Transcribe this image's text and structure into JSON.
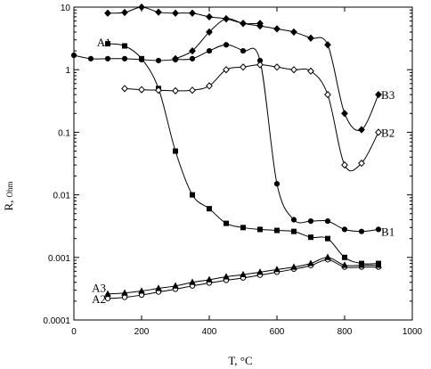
{
  "chart_data": {
    "type": "line",
    "xlabel": "T, °C",
    "ylabel_main": "R,",
    "ylabel_sub": "Ohm",
    "x_ticks": [
      0,
      200,
      400,
      600,
      800,
      1000
    ],
    "y_ticks": [
      {
        "value": 10,
        "label": "10"
      },
      {
        "value": 1,
        "label": "1"
      },
      {
        "value": 0.1,
        "label": "0.1"
      },
      {
        "value": 0.01,
        "label": "0.01"
      },
      {
        "value": 0.001,
        "label": "0.001"
      },
      {
        "value": 0.0001,
        "label": "0.0001"
      }
    ],
    "xlim": [
      0,
      1000
    ],
    "ylim": [
      0.0001,
      10
    ],
    "yscale": "log",
    "grid": false,
    "series": [
      {
        "name": "A1",
        "marker": "square",
        "fill": true,
        "label_pos": [
          115,
          2.8
        ],
        "label_anchor": "end",
        "points": [
          [
            100,
            2.6
          ],
          [
            150,
            2.4
          ],
          [
            200,
            1.5
          ],
          [
            250,
            0.5
          ],
          [
            300,
            0.05
          ],
          [
            350,
            0.01
          ],
          [
            400,
            0.006
          ],
          [
            450,
            0.0035
          ],
          [
            500,
            0.003
          ],
          [
            550,
            0.0028
          ],
          [
            600,
            0.0027
          ],
          [
            650,
            0.0026
          ],
          [
            700,
            0.0021
          ],
          [
            750,
            0.002
          ],
          [
            800,
            0.001
          ],
          [
            850,
            0.0008
          ],
          [
            900,
            0.0008
          ]
        ]
      },
      {
        "name": "A2",
        "marker": "circle",
        "fill": false,
        "label_pos": [
          100,
          0.00022
        ],
        "label_anchor": "end",
        "points": [
          [
            100,
            0.00022
          ],
          [
            150,
            0.00023
          ],
          [
            200,
            0.00025
          ],
          [
            250,
            0.00028
          ],
          [
            300,
            0.00031
          ],
          [
            350,
            0.00035
          ],
          [
            400,
            0.00039
          ],
          [
            450,
            0.00043
          ],
          [
            500,
            0.00047
          ],
          [
            550,
            0.00052
          ],
          [
            600,
            0.00058
          ],
          [
            650,
            0.00065
          ],
          [
            700,
            0.00074
          ],
          [
            750,
            0.00092
          ],
          [
            800,
            0.0007
          ],
          [
            850,
            0.0007
          ],
          [
            900,
            0.0007
          ]
        ]
      },
      {
        "name": "A3",
        "marker": "triangle",
        "fill": true,
        "label_pos": [
          100,
          0.00033
        ],
        "label_anchor": "end",
        "points": [
          [
            100,
            0.00026
          ],
          [
            150,
            0.00027
          ],
          [
            200,
            0.00029
          ],
          [
            250,
            0.00032
          ],
          [
            300,
            0.00035
          ],
          [
            350,
            0.0004
          ],
          [
            400,
            0.00044
          ],
          [
            450,
            0.00049
          ],
          [
            500,
            0.00053
          ],
          [
            550,
            0.00058
          ],
          [
            600,
            0.00064
          ],
          [
            650,
            0.0007
          ],
          [
            700,
            0.0008
          ],
          [
            750,
            0.001
          ],
          [
            800,
            0.00075
          ],
          [
            850,
            0.00075
          ],
          [
            900,
            0.00075
          ]
        ]
      },
      {
        "name": "B1",
        "marker": "circle",
        "fill": true,
        "label_pos": [
          908,
          0.0026
        ],
        "label_anchor": "start",
        "points": [
          [
            0,
            1.7
          ],
          [
            50,
            1.5
          ],
          [
            100,
            1.5
          ],
          [
            150,
            1.5
          ],
          [
            200,
            1.45
          ],
          [
            250,
            1.4
          ],
          [
            300,
            1.45
          ],
          [
            350,
            1.5
          ],
          [
            400,
            2.0
          ],
          [
            450,
            2.5
          ],
          [
            500,
            2.0
          ],
          [
            550,
            1.4
          ],
          [
            600,
            0.015
          ],
          [
            650,
            0.004
          ],
          [
            700,
            0.0038
          ],
          [
            750,
            0.0038
          ],
          [
            800,
            0.0028
          ],
          [
            850,
            0.0026
          ],
          [
            900,
            0.0028
          ]
        ]
      },
      {
        "name": "B2",
        "marker": "diamond",
        "fill": false,
        "label_pos": [
          908,
          0.1
        ],
        "label_anchor": "start",
        "points": [
          [
            150,
            0.5
          ],
          [
            200,
            0.48
          ],
          [
            250,
            0.47
          ],
          [
            300,
            0.46
          ],
          [
            350,
            0.47
          ],
          [
            400,
            0.55
          ],
          [
            450,
            1.0
          ],
          [
            500,
            1.1
          ],
          [
            550,
            1.2
          ],
          [
            600,
            1.1
          ],
          [
            650,
            1.0
          ],
          [
            700,
            0.95
          ],
          [
            750,
            0.4
          ],
          [
            800,
            0.03
          ],
          [
            850,
            0.032
          ],
          [
            900,
            0.1
          ]
        ]
      },
      {
        "name": "B3",
        "marker": "diamond",
        "fill": true,
        "label_pos": [
          908,
          0.4
        ],
        "label_anchor": "start",
        "points": [
          [
            100,
            8.0
          ],
          [
            150,
            8.2
          ],
          [
            200,
            10.0
          ],
          [
            250,
            8.3
          ],
          [
            300,
            8.0
          ],
          [
            350,
            8.0
          ],
          [
            400,
            7.0
          ],
          [
            450,
            6.5
          ],
          [
            500,
            5.5
          ],
          [
            550,
            5.0
          ],
          [
            600,
            4.5
          ],
          [
            650,
            4.0
          ],
          [
            700,
            3.2
          ],
          [
            750,
            2.5
          ],
          [
            800,
            0.2
          ],
          [
            850,
            0.11
          ],
          [
            900,
            0.4
          ]
        ]
      }
    ],
    "extra_curve": {
      "name": "B3 lower branch",
      "marker": "diamond",
      "fill": true,
      "points": [
        [
          300,
          1.5
        ],
        [
          350,
          2.0
        ],
        [
          400,
          4.0
        ],
        [
          450,
          6.5
        ],
        [
          500,
          5.5
        ],
        [
          550,
          5.5
        ]
      ]
    }
  }
}
